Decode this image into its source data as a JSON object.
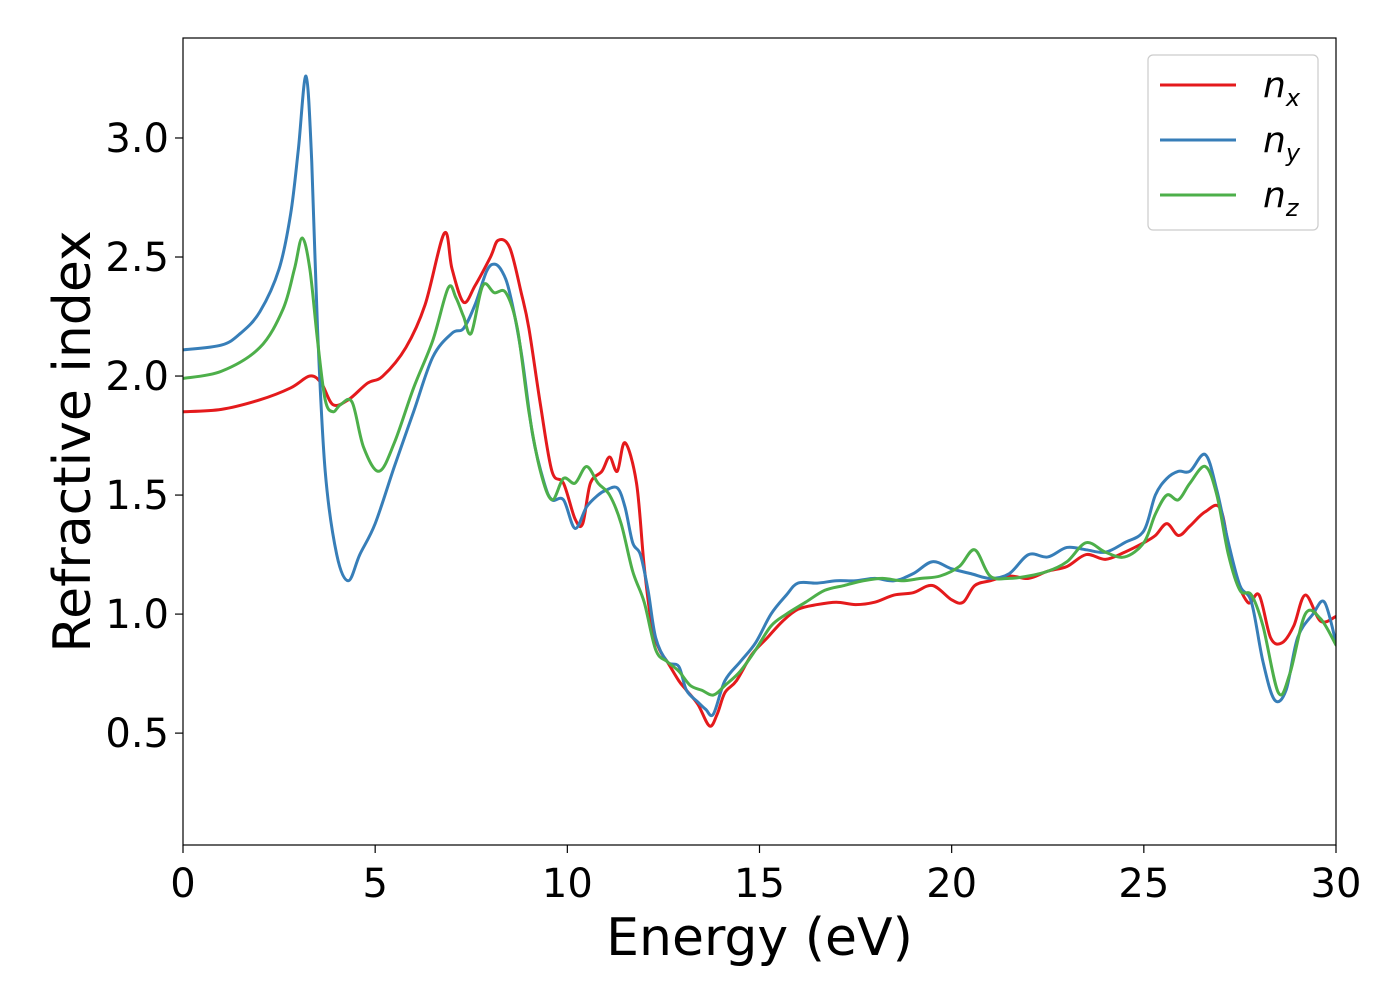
{
  "chart_data": {
    "type": "line",
    "title": "",
    "xlabel": "Energy (eV)",
    "ylabel": "Refractive index",
    "xlim": [
      0,
      30
    ],
    "ylim": [
      0.03,
      3.42
    ],
    "xticks": [
      0,
      5,
      10,
      15,
      20,
      25,
      30
    ],
    "xtick_labels": [
      "0",
      "5",
      "10",
      "15",
      "20",
      "25",
      "30"
    ],
    "yticks": [
      0.5,
      1.0,
      1.5,
      2.0,
      2.5,
      3.0
    ],
    "ytick_labels": [
      "0.5",
      "1.0",
      "1.5",
      "2.0",
      "2.5",
      "3.0"
    ],
    "grid": false,
    "legend_position": "top-right",
    "series": [
      {
        "name": "n_x",
        "label_base": "n",
        "label_sub": "x",
        "color": "#e41a1c",
        "x": [
          0,
          1,
          2,
          2.8,
          3.3,
          3.6,
          3.9,
          4.3,
          4.8,
          5.2,
          5.8,
          6.3,
          6.8,
          7.0,
          7.3,
          7.6,
          8.0,
          8.2,
          8.5,
          8.8,
          9.0,
          9.3,
          9.6,
          9.9,
          10.2,
          10.4,
          10.6,
          10.9,
          11.1,
          11.3,
          11.5,
          11.8,
          12.0,
          12.2,
          12.4,
          12.6,
          12.9,
          13.1,
          13.4,
          13.7,
          13.9,
          14.1,
          14.4,
          14.8,
          15.2,
          15.6,
          16.0,
          16.5,
          17.0,
          17.5,
          18.0,
          18.5,
          19.0,
          19.5,
          20.0,
          20.3,
          20.6,
          21.0,
          21.5,
          22.0,
          22.5,
          23.0,
          23.5,
          24.0,
          24.5,
          25.0,
          25.3,
          25.6,
          25.9,
          26.2,
          26.6,
          27.0,
          27.3,
          27.7,
          28.0,
          28.3,
          28.6,
          28.9,
          29.2,
          29.6,
          30.0
        ],
        "y": [
          1.85,
          1.86,
          1.9,
          1.95,
          2.0,
          1.97,
          1.88,
          1.9,
          1.97,
          2.0,
          2.12,
          2.3,
          2.6,
          2.45,
          2.31,
          2.38,
          2.5,
          2.57,
          2.54,
          2.35,
          2.2,
          1.88,
          1.6,
          1.55,
          1.4,
          1.38,
          1.55,
          1.6,
          1.66,
          1.6,
          1.72,
          1.55,
          1.2,
          0.95,
          0.85,
          0.8,
          0.72,
          0.68,
          0.62,
          0.53,
          0.58,
          0.67,
          0.72,
          0.83,
          0.9,
          0.97,
          1.02,
          1.04,
          1.05,
          1.04,
          1.05,
          1.08,
          1.09,
          1.12,
          1.06,
          1.05,
          1.12,
          1.14,
          1.16,
          1.15,
          1.18,
          1.2,
          1.25,
          1.23,
          1.26,
          1.3,
          1.33,
          1.38,
          1.33,
          1.37,
          1.43,
          1.44,
          1.2,
          1.05,
          1.08,
          0.9,
          0.88,
          0.95,
          1.08,
          0.97,
          0.99
        ]
      },
      {
        "name": "n_y",
        "label_base": "n",
        "label_sub": "y",
        "color": "#377eb8",
        "x": [
          0,
          1,
          1.5,
          2,
          2.5,
          2.8,
          3.0,
          3.2,
          3.35,
          3.5,
          3.7,
          4.0,
          4.3,
          4.6,
          5.0,
          5.5,
          6.0,
          6.5,
          7.0,
          7.3,
          7.6,
          7.9,
          8.1,
          8.3,
          8.5,
          8.8,
          9.1,
          9.4,
          9.6,
          9.9,
          10.2,
          10.5,
          10.8,
          11.0,
          11.3,
          11.5,
          11.7,
          11.9,
          12.1,
          12.3,
          12.6,
          12.9,
          13.1,
          13.4,
          13.6,
          13.8,
          14.1,
          14.5,
          14.9,
          15.3,
          15.7,
          16.0,
          16.5,
          17.0,
          17.5,
          18.0,
          18.5,
          19.0,
          19.5,
          20.0,
          20.5,
          21.0,
          21.5,
          22.0,
          22.5,
          23.0,
          23.5,
          24.0,
          24.5,
          25.0,
          25.3,
          25.6,
          25.9,
          26.2,
          26.6,
          26.9,
          27.2,
          27.5,
          27.8,
          28.1,
          28.4,
          28.7,
          29.0,
          29.4,
          29.7,
          30.0
        ],
        "y": [
          2.11,
          2.13,
          2.18,
          2.27,
          2.45,
          2.68,
          2.95,
          3.26,
          2.9,
          2.2,
          1.6,
          1.25,
          1.14,
          1.25,
          1.38,
          1.62,
          1.85,
          2.08,
          2.18,
          2.2,
          2.3,
          2.44,
          2.47,
          2.44,
          2.35,
          2.1,
          1.75,
          1.55,
          1.48,
          1.48,
          1.36,
          1.45,
          1.5,
          1.52,
          1.53,
          1.45,
          1.3,
          1.25,
          1.1,
          0.9,
          0.8,
          0.78,
          0.68,
          0.63,
          0.6,
          0.58,
          0.72,
          0.8,
          0.88,
          1.0,
          1.08,
          1.13,
          1.13,
          1.14,
          1.14,
          1.15,
          1.14,
          1.17,
          1.22,
          1.19,
          1.17,
          1.15,
          1.17,
          1.25,
          1.24,
          1.28,
          1.27,
          1.26,
          1.3,
          1.35,
          1.5,
          1.57,
          1.6,
          1.6,
          1.67,
          1.52,
          1.3,
          1.12,
          1.05,
          0.8,
          0.64,
          0.68,
          0.9,
          1.0,
          1.05,
          0.88
        ]
      },
      {
        "name": "n_z",
        "label_base": "n",
        "label_sub": "z",
        "color": "#4daf4a",
        "x": [
          0,
          1,
          2,
          2.6,
          2.9,
          3.1,
          3.3,
          3.5,
          3.7,
          3.9,
          4.1,
          4.4,
          4.7,
          5.1,
          5.5,
          6.0,
          6.5,
          6.9,
          7.1,
          7.3,
          7.5,
          7.8,
          8.1,
          8.4,
          8.7,
          9.0,
          9.3,
          9.6,
          9.9,
          10.2,
          10.5,
          10.8,
          11.1,
          11.4,
          11.7,
          12.0,
          12.3,
          12.6,
          12.9,
          13.2,
          13.5,
          13.8,
          14.1,
          14.5,
          14.9,
          15.3,
          15.7,
          16.2,
          16.7,
          17.2,
          17.7,
          18.2,
          18.7,
          19.2,
          19.7,
          20.2,
          20.6,
          21.0,
          21.5,
          22.0,
          22.5,
          23.0,
          23.5,
          24.0,
          24.5,
          25.0,
          25.3,
          25.6,
          25.9,
          26.2,
          26.6,
          26.9,
          27.2,
          27.5,
          27.8,
          28.1,
          28.5,
          28.8,
          29.2,
          29.6,
          30.0
        ],
        "y": [
          1.99,
          2.02,
          2.12,
          2.28,
          2.45,
          2.58,
          2.45,
          2.15,
          1.9,
          1.85,
          1.88,
          1.89,
          1.7,
          1.6,
          1.72,
          1.95,
          2.15,
          2.37,
          2.33,
          2.25,
          2.18,
          2.38,
          2.35,
          2.35,
          2.2,
          1.85,
          1.6,
          1.48,
          1.57,
          1.55,
          1.62,
          1.55,
          1.5,
          1.38,
          1.18,
          1.05,
          0.85,
          0.8,
          0.76,
          0.7,
          0.68,
          0.66,
          0.7,
          0.76,
          0.85,
          0.95,
          1.0,
          1.05,
          1.1,
          1.12,
          1.14,
          1.15,
          1.14,
          1.15,
          1.16,
          1.2,
          1.27,
          1.16,
          1.15,
          1.16,
          1.18,
          1.22,
          1.3,
          1.26,
          1.24,
          1.3,
          1.42,
          1.5,
          1.48,
          1.55,
          1.62,
          1.5,
          1.25,
          1.1,
          1.08,
          0.95,
          0.67,
          0.75,
          1.0,
          0.98,
          0.87
        ]
      }
    ]
  }
}
